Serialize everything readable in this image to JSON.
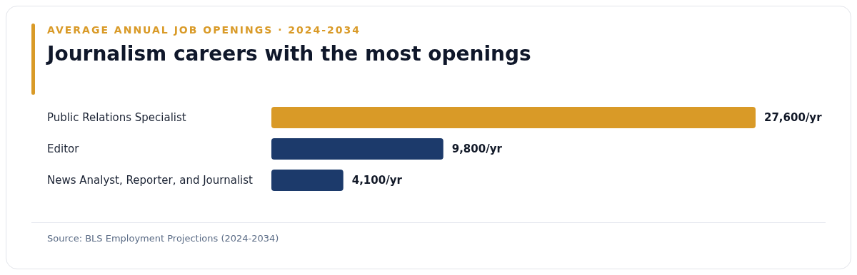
{
  "chart_data": {
    "type": "bar",
    "orientation": "horizontal",
    "subtitle": "AVERAGE ANNUAL JOB OPENINGS · 2024-2034",
    "title": "Journalism careers with the most openings",
    "categories": [
      "Public Relations Specialist",
      "Editor",
      "News Analyst, Reporter, and Journalist"
    ],
    "values": [
      27600,
      9800,
      4100
    ],
    "colors": [
      "#d99a27",
      "#1c3a6b",
      "#1c3a6b"
    ],
    "value_labels": [
      "27,600/yr",
      "9,800/yr",
      "4,100/yr"
    ],
    "annotations": [
      "Source: BLS Employment Projections (2024-2034)"
    ]
  }
}
